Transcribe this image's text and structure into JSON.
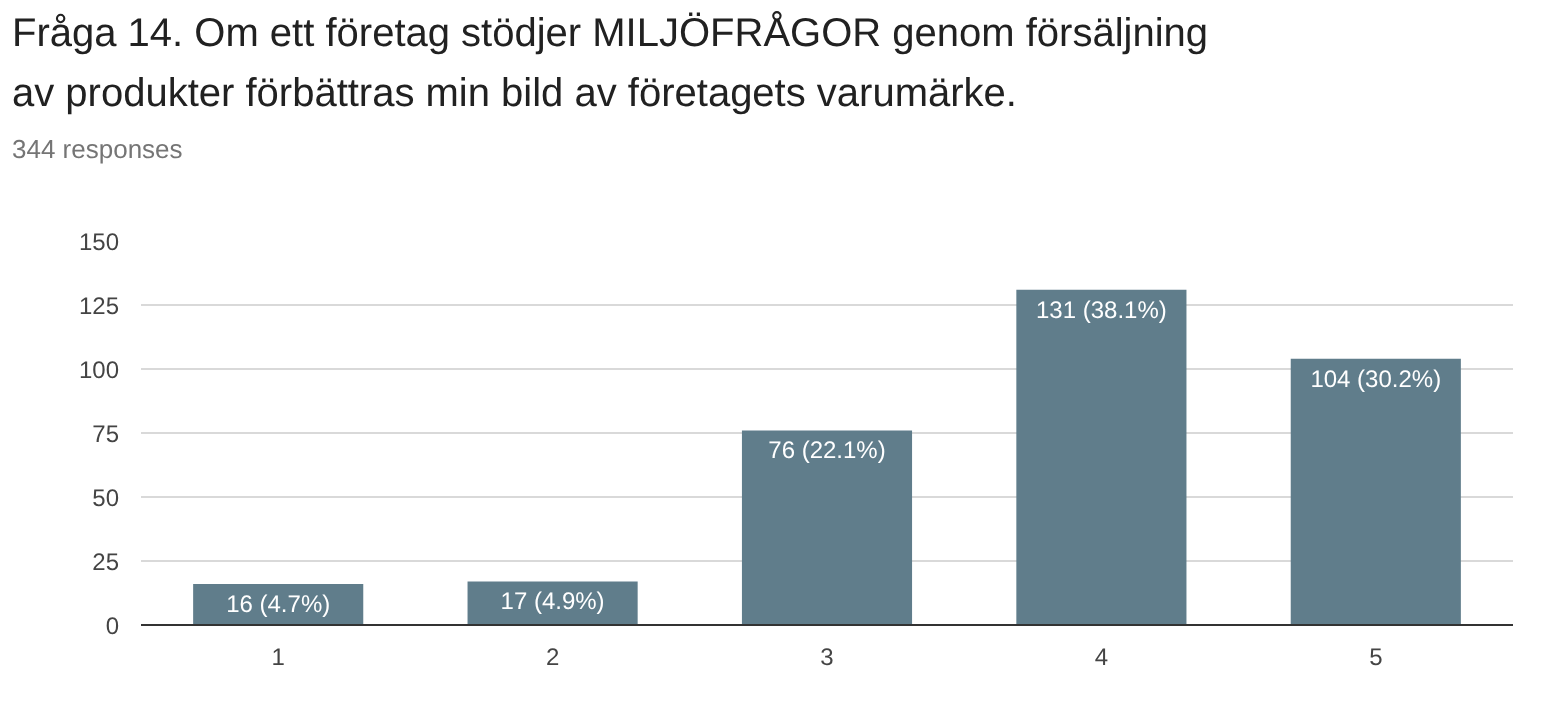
{
  "chart_data": {
    "type": "bar",
    "title": "Fråga 14. Om ett företag stödjer MILJÖFRÅGOR genom försäljning av produkter förbättras min bild av företagets varumärke.",
    "subtitle": "344 responses",
    "categories": [
      "1",
      "2",
      "3",
      "4",
      "5"
    ],
    "values": [
      16,
      17,
      76,
      131,
      104
    ],
    "value_labels": [
      "16 (4.7%)",
      "17 (4.9%)",
      "76 (22.1%)",
      "131 (38.1%)",
      "104 (30.2%)"
    ],
    "color": "#607d8b",
    "ylim": [
      0,
      150
    ],
    "yticks": [
      0,
      25,
      50,
      75,
      100,
      125,
      150
    ],
    "grid": "y"
  }
}
